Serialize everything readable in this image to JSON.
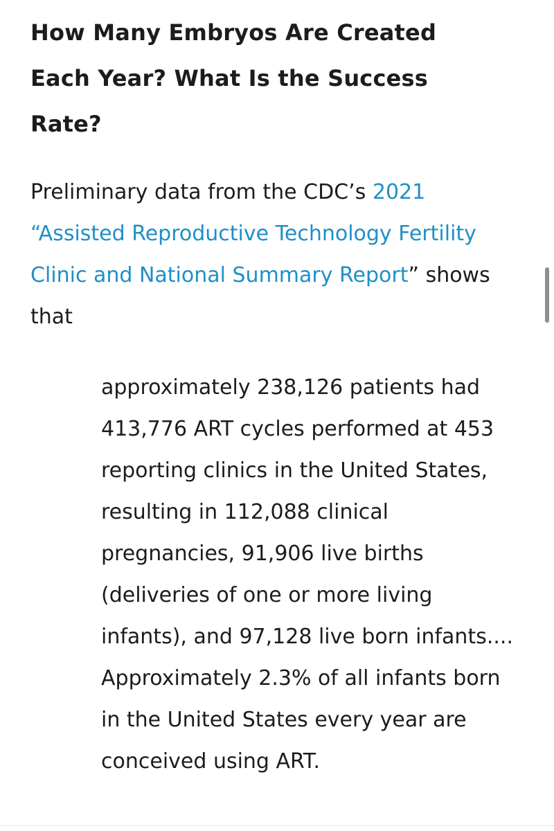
{
  "article": {
    "heading": "How Many Embryos Are Created Each Year? What Is the Success Rate?",
    "intro": {
      "before_link": "Preliminary data from the CDC’s ",
      "link_text": "2021 “Assisted Reproductive Technology Fertility Clinic and National Summary Report",
      "after_link": "” shows that"
    },
    "blockquote": "approximately 238,126 patients had 413,776 ART cycles performed at 453 reporting clinics in the United States, resulting in 112,088 clinical pregnancies, 91,906 live births (deliveries of one or more living infants), and 97,128 live born infants.... Approximately 2.3% of all infants born in the United States every year are conceived using ART."
  },
  "colors": {
    "text": "#1c1c1c",
    "link": "#1f8fc7",
    "scrollbar": "#8e8e8e"
  }
}
